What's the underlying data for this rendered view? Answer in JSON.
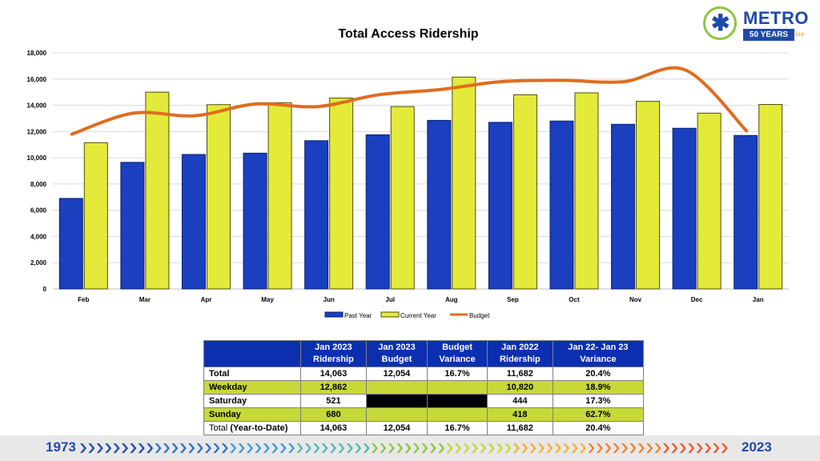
{
  "chart_data": {
    "type": "bar",
    "title": "Total Access Ridership",
    "categories": [
      "Feb",
      "Mar",
      "Apr",
      "May",
      "Jun",
      "Jul",
      "Aug",
      "Sep",
      "Oct",
      "Nov",
      "Dec",
      "Jan"
    ],
    "series": [
      {
        "name": "Past Year",
        "type": "bar",
        "color": "#1a3fbf",
        "values": [
          6900,
          9650,
          10250,
          10350,
          11300,
          11750,
          12850,
          12700,
          12800,
          12550,
          12250,
          11700
        ]
      },
      {
        "name": "Current Year",
        "type": "bar",
        "color": "#e3ea3a",
        "values": [
          11150,
          15000,
          14050,
          14200,
          14550,
          13900,
          16150,
          14800,
          14950,
          14300,
          13400,
          14063
        ]
      },
      {
        "name": "Budget",
        "type": "line",
        "color": "#e06c1e",
        "values": [
          11800,
          13400,
          13200,
          14100,
          13900,
          14800,
          15200,
          15800,
          15900,
          15800,
          16700,
          12054
        ]
      }
    ],
    "yticks": [
      0,
      2000,
      4000,
      6000,
      8000,
      10000,
      12000,
      14000,
      16000,
      18000
    ],
    "ylim": [
      0,
      18000
    ],
    "grid": true,
    "legend": "bottom"
  },
  "logo": {
    "word": "METRO",
    "badge": "50 YEARS"
  },
  "table": {
    "headers": [
      "",
      "Jan 2023\nRidership",
      "Jan 2023\nBudget",
      "Budget\nVariance",
      "Jan 2022\nRidership",
      "Jan 22- Jan 23\nVariance"
    ],
    "rows": [
      {
        "label": "Total",
        "cells": [
          "14,063",
          "12,054",
          "16.7%",
          "11,682",
          "20.4%"
        ]
      },
      {
        "label": "Weekday",
        "cells": [
          "12,862",
          "",
          "",
          "10,820",
          "18.9%"
        ]
      },
      {
        "label": "Saturday",
        "cells": [
          "521",
          "",
          "",
          "444",
          "17.3%"
        ]
      },
      {
        "label": "Sunday",
        "cells": [
          "680",
          "",
          "",
          "418",
          "62.7%"
        ]
      },
      {
        "label": "Total",
        "label_suffix": "(Year-to-Date)",
        "cells": [
          "14,063",
          "12,054",
          "16.7%",
          "11,682",
          "20.4%"
        ]
      }
    ]
  },
  "footer": {
    "start_year": "1973",
    "end_year": "2023"
  }
}
